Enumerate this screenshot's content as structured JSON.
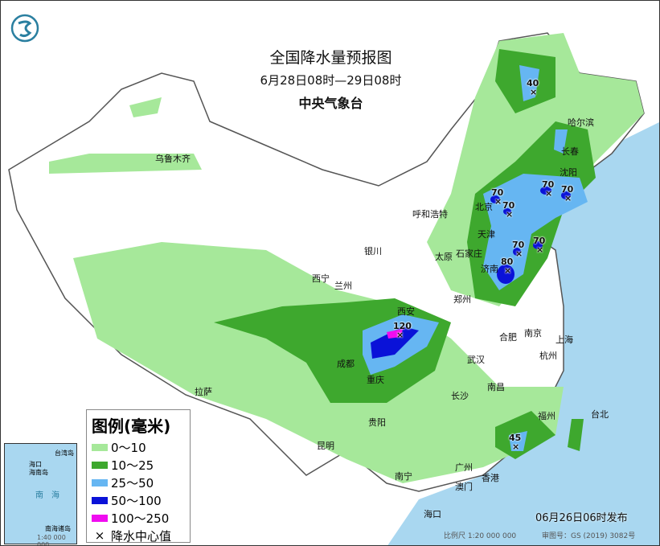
{
  "title": "全国降水量预报图",
  "period": "6月28日08时—29日08时",
  "issuer": "中央气象台",
  "publish_time": "06月26日06时发布",
  "scale": "比例尺 1:20 000 000",
  "approval_no": "审图号：GS (2019) 3082号",
  "legend": {
    "title": "图例(毫米)",
    "items": [
      {
        "label": "0～10",
        "color": "#a6e89a"
      },
      {
        "label": "10～25",
        "color": "#3ea82e"
      },
      {
        "label": "25～50",
        "color": "#66b6f2"
      },
      {
        "label": "50～100",
        "color": "#0a12d8"
      },
      {
        "label": "100～250",
        "color": "#f00cf0"
      }
    ],
    "center_marker": "×",
    "center_label": "降水中心值"
  },
  "inset": {
    "labels": [
      "海口",
      "海南岛",
      "台湾岛",
      "南",
      "海",
      "南海诸岛"
    ],
    "scale": "1:40 000 000"
  },
  "cities": [
    "乌鲁木齐",
    "哈尔滨",
    "长春",
    "沈阳",
    "北京",
    "天津",
    "呼和浩特",
    "石家庄",
    "太原",
    "济南",
    "银川",
    "西宁",
    "兰州",
    "西安",
    "郑州",
    "拉萨",
    "成都",
    "重庆",
    "武汉",
    "合肥",
    "南京",
    "上海",
    "杭州",
    "长沙",
    "南昌",
    "福州",
    "台北",
    "贵阳",
    "昆明",
    "南宁",
    "广州",
    "澳门",
    "香港",
    "海口"
  ],
  "precip_centers": [
    "40",
    "70",
    "70",
    "70",
    "70",
    "70",
    "70",
    "80",
    "120",
    "45"
  ],
  "colors": {
    "sea": "#a9d7f0",
    "land": "#ffffff"
  }
}
